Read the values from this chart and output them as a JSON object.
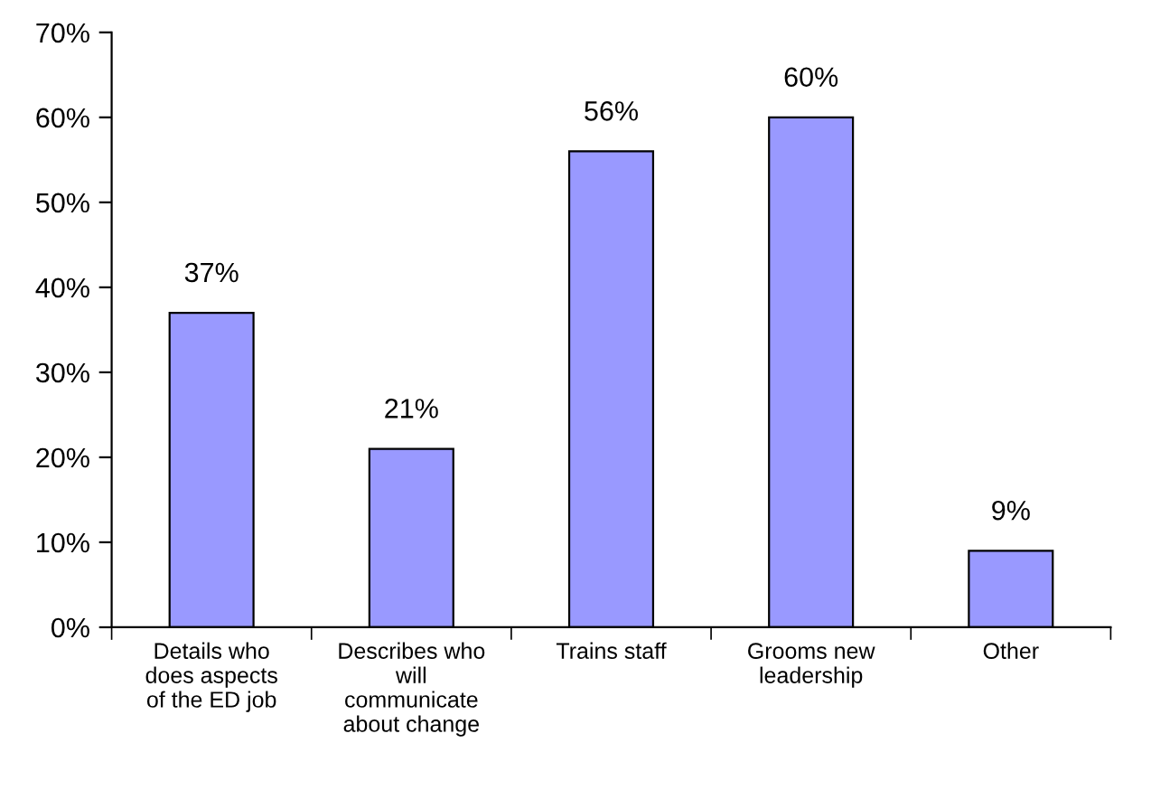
{
  "chart_data": {
    "type": "bar",
    "categories": [
      "Details who\ndoes aspects\nof the ED job",
      "Describes who\nwill\ncommunicate\nabout change",
      "Trains staff",
      "Grooms new\nleadership",
      "Other"
    ],
    "values": [
      37,
      21,
      56,
      60,
      9
    ],
    "value_labels": [
      "37%",
      "21%",
      "56%",
      "60%",
      "9%"
    ],
    "color": "#9999ff",
    "ylim": [
      0,
      70
    ],
    "yticks": [
      {
        "value": 0,
        "label": "0%"
      },
      {
        "value": 10,
        "label": "10%"
      },
      {
        "value": 20,
        "label": "20%"
      },
      {
        "value": 30,
        "label": "30%"
      },
      {
        "value": 40,
        "label": "40%"
      },
      {
        "value": 50,
        "label": "50%"
      },
      {
        "value": 60,
        "label": "60%"
      },
      {
        "value": 70,
        "label": "70%"
      }
    ],
    "grid": false,
    "legend": false
  }
}
